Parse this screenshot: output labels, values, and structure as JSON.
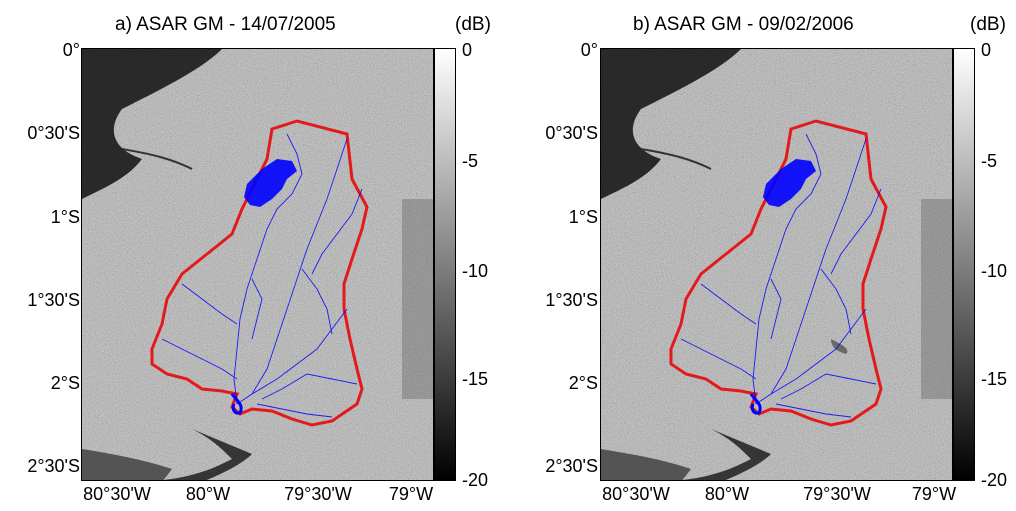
{
  "panels": [
    {
      "title": "a) ASAR GM - 14/07/2005",
      "unit": "(dB)",
      "y_ticks": [
        "0°",
        "0°30'S",
        "1°S",
        "1°30'S",
        "2°S",
        "2°30'S"
      ],
      "x_ticks": [
        "80°30'W",
        "80°W",
        "79°30'W",
        "79°W"
      ],
      "colorbar_ticks": [
        "0",
        "-5",
        "-10",
        "-15",
        "-20"
      ]
    },
    {
      "title": "b) ASAR GM - 09/02/2006",
      "unit": "(dB)",
      "y_ticks": [
        "0°",
        "0°30'S",
        "1°S",
        "1°30'S",
        "2°S",
        "2°30'S"
      ],
      "x_ticks": [
        "80°30'W",
        "80°W",
        "79°30'W",
        "79°W"
      ],
      "colorbar_ticks": [
        "0",
        "-5",
        "-10",
        "-15",
        "-20"
      ]
    }
  ],
  "colors": {
    "boundary": "#e31a1c",
    "rivers": "#0000ff",
    "colorbar_top": "#ffffff",
    "colorbar_bottom": "#000000"
  }
}
